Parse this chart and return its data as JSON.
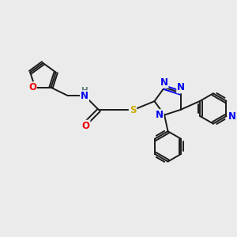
{
  "background_color": "#ebebeb",
  "fig_size": [
    3.0,
    3.0
  ],
  "dpi": 100,
  "bond_color": "#1a1a1a",
  "atom_colors": {
    "N": "#0000ee",
    "O": "#ee0000",
    "S": "#ccaa00",
    "H": "#5f8080",
    "C": "#1a1a1a"
  },
  "font_size_atom": 8.5,
  "lw": 1.4
}
